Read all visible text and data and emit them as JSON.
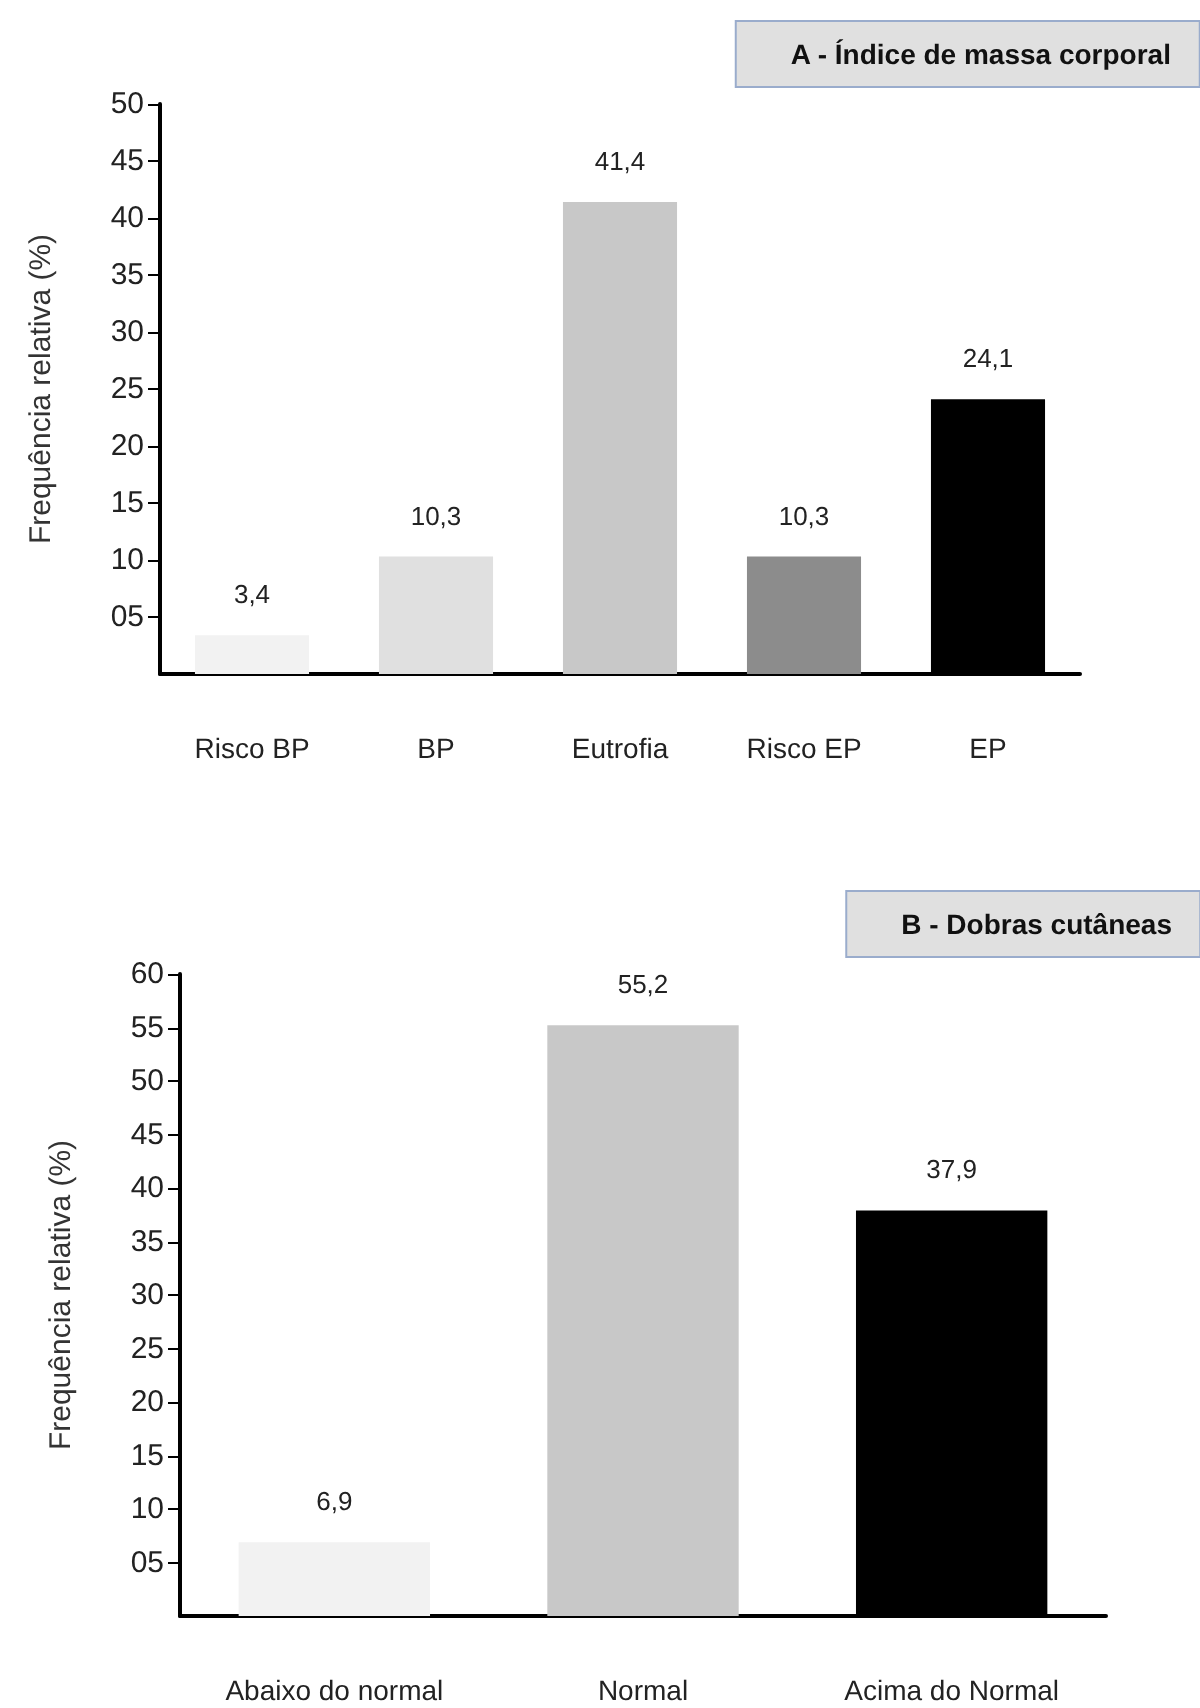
{
  "chart_data": [
    {
      "type": "bar",
      "title": "A - Índice de massa corporal",
      "ylabel": "Frequência relativa (%)",
      "categories": [
        "Risco BP",
        "BP",
        "Eutrofia",
        "Risco EP",
        "EP"
      ],
      "values": [
        3.4,
        10.3,
        41.4,
        10.3,
        24.1
      ],
      "colors": [
        "#f2f2f2",
        "#e0e0e0",
        "#c8c8c8",
        "#8c8c8c",
        "#000000"
      ],
      "value_labels": [
        "3,4",
        "10,3",
        "41,4",
        "10,3",
        "24,1"
      ],
      "ylim": [
        0,
        50
      ],
      "yticks": [
        {
          "value": 5,
          "label": "05"
        },
        10,
        15,
        20,
        25,
        30,
        35,
        40,
        45,
        50
      ],
      "grid": false
    },
    {
      "type": "bar",
      "title": "B - Dobras cutâneas",
      "ylabel": "Frequência relativa (%)",
      "categories": [
        "Abaixo do normal",
        "Normal",
        "Acima do Normal"
      ],
      "values": [
        6.9,
        55.2,
        37.9
      ],
      "colors": [
        "#f2f2f2",
        "#c8c8c8",
        "#000000"
      ],
      "value_labels": [
        "6,9",
        "55,2",
        "37,9"
      ],
      "ylim": [
        0,
        60
      ],
      "yticks": [
        {
          "value": 5,
          "label": "05"
        },
        10,
        15,
        20,
        25,
        30,
        35,
        40,
        45,
        50,
        55,
        60
      ],
      "grid": false
    }
  ]
}
